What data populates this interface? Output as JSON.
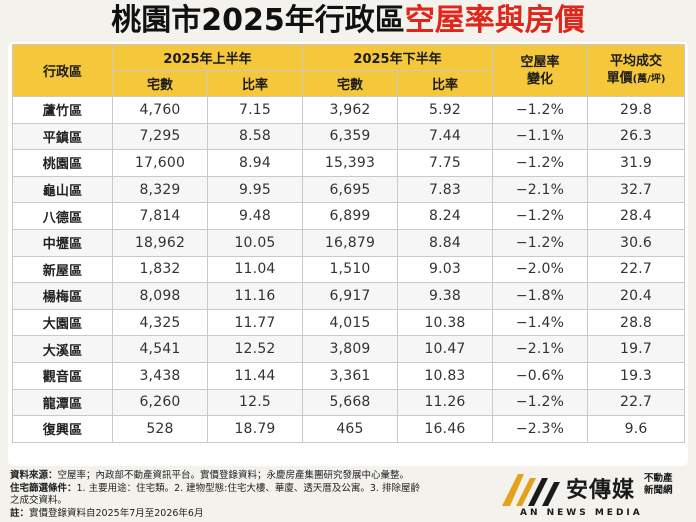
{
  "title": {
    "part1": "桃園市2025年",
    "part2": "行政區",
    "part3": "空屋率與房價"
  },
  "table": {
    "h_district": "行政區",
    "h_first_half": "2025年上半年",
    "h_second_half": "2025年下半年",
    "h_units": "宅數",
    "h_ratio": "比率",
    "h_change_line1": "空屋率",
    "h_change_line2": "變化",
    "h_price_line1": "平均成交",
    "h_price_line2": "單價",
    "h_price_unit": "(萬/坪)",
    "rows": [
      [
        "蘆竹區",
        "4,760",
        "7.15",
        "3,962",
        "5.92",
        "−1.2%",
        "29.8"
      ],
      [
        "平鎮區",
        "7,295",
        "8.58",
        "6,359",
        "7.44",
        "−1.1%",
        "26.3"
      ],
      [
        "桃園區",
        "17,600",
        "8.94",
        "15,393",
        "7.75",
        "−1.2%",
        "31.9"
      ],
      [
        "龜山區",
        "8,329",
        "9.95",
        "6,695",
        "7.83",
        "−2.1%",
        "32.7"
      ],
      [
        "八德區",
        "7,814",
        "9.48",
        "6,899",
        "8.24",
        "−1.2%",
        "28.4"
      ],
      [
        "中壢區",
        "18,962",
        "10.05",
        "16,879",
        "8.84",
        "−1.2%",
        "30.6"
      ],
      [
        "新屋區",
        "1,832",
        "11.04",
        "1,510",
        "9.03",
        "−2.0%",
        "22.7"
      ],
      [
        "楊梅區",
        "8,098",
        "11.16",
        "6,917",
        "9.38",
        "−1.8%",
        "20.4"
      ],
      [
        "大園區",
        "4,325",
        "11.77",
        "4,015",
        "10.38",
        "−1.4%",
        "28.8"
      ],
      [
        "大溪區",
        "4,541",
        "12.52",
        "3,809",
        "10.47",
        "−2.1%",
        "19.7"
      ],
      [
        "觀音區",
        "3,438",
        "11.44",
        "3,361",
        "10.83",
        "−0.6%",
        "19.3"
      ],
      [
        "龍潭區",
        "6,260",
        "12.5",
        "5,668",
        "11.26",
        "−1.2%",
        "22.7"
      ],
      [
        "復興區",
        "528",
        "18.79",
        "465",
        "16.46",
        "−2.3%",
        "9.6"
      ]
    ]
  },
  "notes": {
    "source_label": "資料來源：",
    "source_text": "空屋率；內政部不動產資訊平台。實價登錄資料；永慶房產集團研究發展中心彙整。",
    "criteria_label": "住宅篩選條件：",
    "criteria_text": "1. 主要用途：住宅類。2. 建物型態:住宅大樓、華廈、透天厝及公寓。3. 排除屋齡",
    "criteria_cont": "之成交資料。",
    "note_label": "註：",
    "note_text": "實價登錄資料自2025年7月至2026年6月"
  },
  "logo": {
    "name": "安傳媒",
    "sub_line1": "不動產",
    "sub_line2": "新聞網",
    "english": "AN NEWS MEDIA"
  },
  "colors": {
    "header_bg": "#f5c73b",
    "title_red": "#e0261b",
    "logo_gold": "#e3a21a"
  }
}
